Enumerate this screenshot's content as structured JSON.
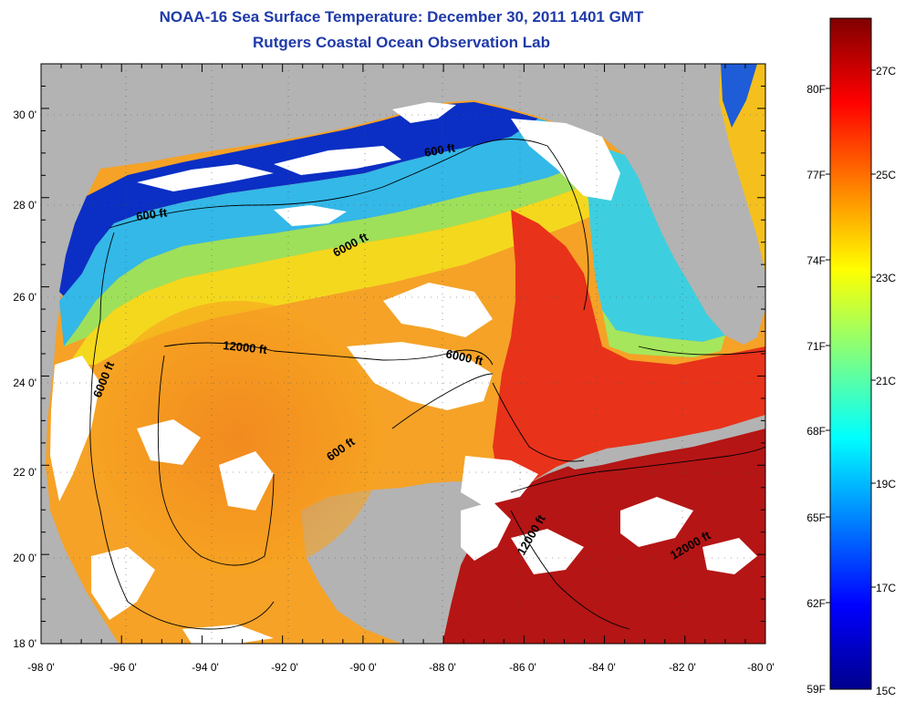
{
  "header": {
    "title": "NOAA-16 Sea Surface Temperature:  December 30, 2011 1401 GMT",
    "subtitle": "Rutgers Coastal Ocean Observation Lab"
  },
  "map": {
    "lon_range": [
      -98,
      -80
    ],
    "lat_range": [
      18,
      31
    ],
    "x_ticks": [
      "-98 0'",
      "-96 0'",
      "-94 0'",
      "-92 0'",
      "-90 0'",
      "-88 0'",
      "-86 0'",
      "-84 0'",
      "-82 0'",
      "-80 0'"
    ],
    "y_ticks": [
      "18 0'",
      "20 0'",
      "22 0'",
      "24 0'",
      "26 0'",
      "28 0'",
      "30 0'"
    ],
    "land_color": "#b3b3b3",
    "cloud_color": "#ffffff",
    "grid": "dotted",
    "contour_labels": [
      "600 ft",
      "600 ft",
      "6000 ft",
      "12000 ft",
      "6000 ft",
      "6000 ft",
      "600 ft",
      "12000 ft",
      "12000 ft"
    ]
  },
  "colorbar": {
    "range_c": [
      15,
      28.3
    ],
    "fahrenheit_labels": [
      "80F",
      "77F",
      "74F",
      "71F",
      "68F",
      "65F",
      "62F",
      "59F"
    ],
    "celsius_labels": [
      "27C",
      "25C",
      "23C",
      "21C",
      "19C",
      "17C",
      "15C"
    ],
    "colors": [
      "#00008c",
      "#0000ff",
      "#0080ff",
      "#00ffff",
      "#80ff80",
      "#ffff00",
      "#ff8000",
      "#ff0000",
      "#800000"
    ]
  }
}
